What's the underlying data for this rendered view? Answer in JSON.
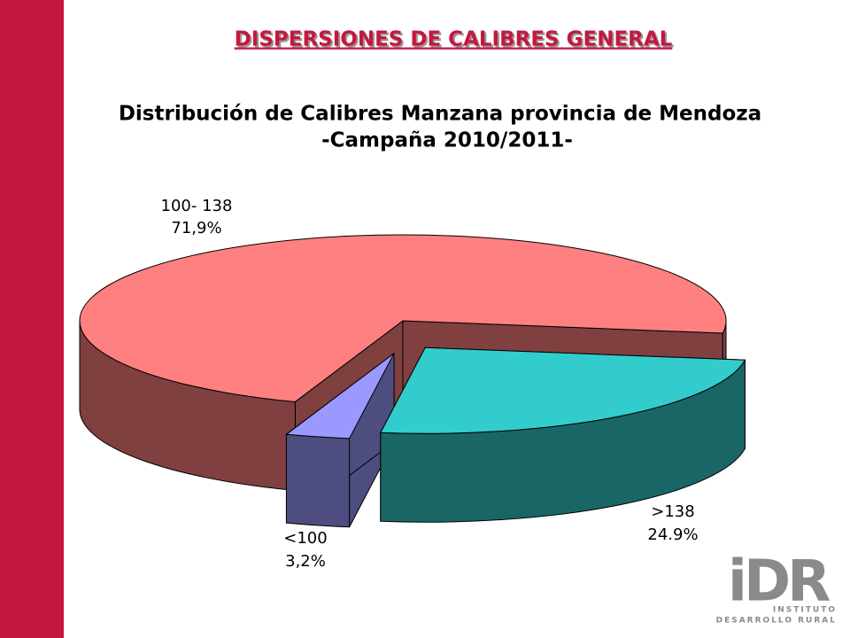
{
  "slide_title": "DISPERSIONES DE CALIBRES GENERAL",
  "logo": {
    "mark": "iDR",
    "line1": "INSTITUTO",
    "line2": "DESARROLLO RURAL"
  },
  "chart_data": {
    "type": "pie3d",
    "title": "Distribución de Calibres Manzana provincia de Mendoza",
    "subtitle": "-Campaña 2010/2011-",
    "categories": [
      ">138",
      "<100",
      "100- 138"
    ],
    "values": [
      24.9,
      3.2,
      71.9
    ],
    "value_labels": [
      "24.9%",
      "3,2%",
      "71,9%"
    ],
    "colors": [
      "#33cccc",
      "#9999ff",
      "#ff8080"
    ]
  }
}
